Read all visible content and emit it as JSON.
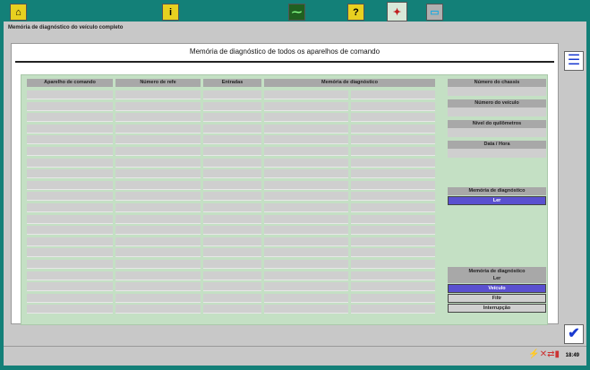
{
  "toolbar": {
    "icons": [
      "car-lift-icon",
      "info-icon",
      "measurement-icon",
      "help-icon",
      "diagnosis-icon",
      "computer-icon"
    ],
    "active": "diagnosis-icon"
  },
  "breadcrumb": "Memória de diagnóstico do veículo completo",
  "panel": {
    "title": "Memória de diagnóstico de todos os aparelhos de comando"
  },
  "table": {
    "headers": [
      "Aparelho de comando",
      "Número de refe",
      "Entradas",
      "Memória de diagnóstico"
    ],
    "row_count": 20
  },
  "right": {
    "fields": [
      "Número do chassis",
      "Número do veículo",
      "Nível do quilômetros",
      "Data / Hora"
    ],
    "memory1": {
      "label": "Memória de diagnóstico",
      "button": "Ler"
    },
    "memory2": {
      "label": "Memória de diagnóstico",
      "sub": "Ler",
      "buttons": [
        "Veículo",
        "Filtr",
        "Interrupção"
      ],
      "selected": "Veículo"
    }
  },
  "status": {
    "time": "18:49"
  },
  "colors": {
    "frame": "#138078",
    "selected": "#5a50d0",
    "panel": "#c4e0c4"
  }
}
